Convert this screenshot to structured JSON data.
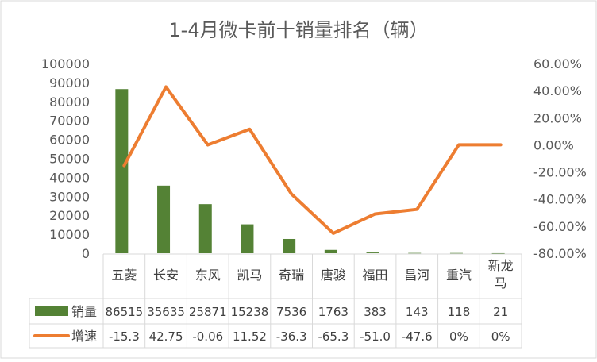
{
  "chart_data": {
    "type": "bar+line",
    "title": "1-4月微卡前十销量排名（辆）",
    "categories": [
      "五菱",
      "长安",
      "东风",
      "凯马",
      "奇瑞",
      "唐骏",
      "福田",
      "昌河",
      "重汽",
      "新龙马"
    ],
    "series": [
      {
        "name": "销量",
        "type": "bar",
        "axis": "left",
        "color": "#548235",
        "values": [
          86515,
          35635,
          25871,
          15238,
          7536,
          1763,
          383,
          143,
          118,
          21
        ],
        "labels": [
          "86515",
          "35635",
          "25871",
          "15238",
          "7536",
          "1763",
          "383",
          "143",
          "118",
          "21"
        ]
      },
      {
        "name": "增速",
        "type": "line",
        "axis": "right",
        "color": "#ED7D31",
        "values": [
          -15.3,
          42.75,
          -0.06,
          11.52,
          -36.3,
          -65.3,
          -51.0,
          -47.6,
          0,
          0
        ],
        "labels": [
          "-15.3",
          "42.75",
          "-0.06",
          "11.52",
          "-36.3",
          "-65.3",
          "-51.0",
          "-47.6",
          "0%",
          "0%"
        ]
      }
    ],
    "left_axis": {
      "min": 0,
      "max": 100000,
      "ticks": [
        "0",
        "10000",
        "20000",
        "30000",
        "40000",
        "50000",
        "60000",
        "70000",
        "80000",
        "90000",
        "100000"
      ]
    },
    "right_axis": {
      "min": -80,
      "max": 60,
      "ticks": [
        "-80.00%",
        "-60.00%",
        "-40.00%",
        "-20.00%",
        "0.00%",
        "20.00%",
        "40.00%",
        "60.00%"
      ]
    },
    "grid": false,
    "legend": "data-table-left"
  }
}
